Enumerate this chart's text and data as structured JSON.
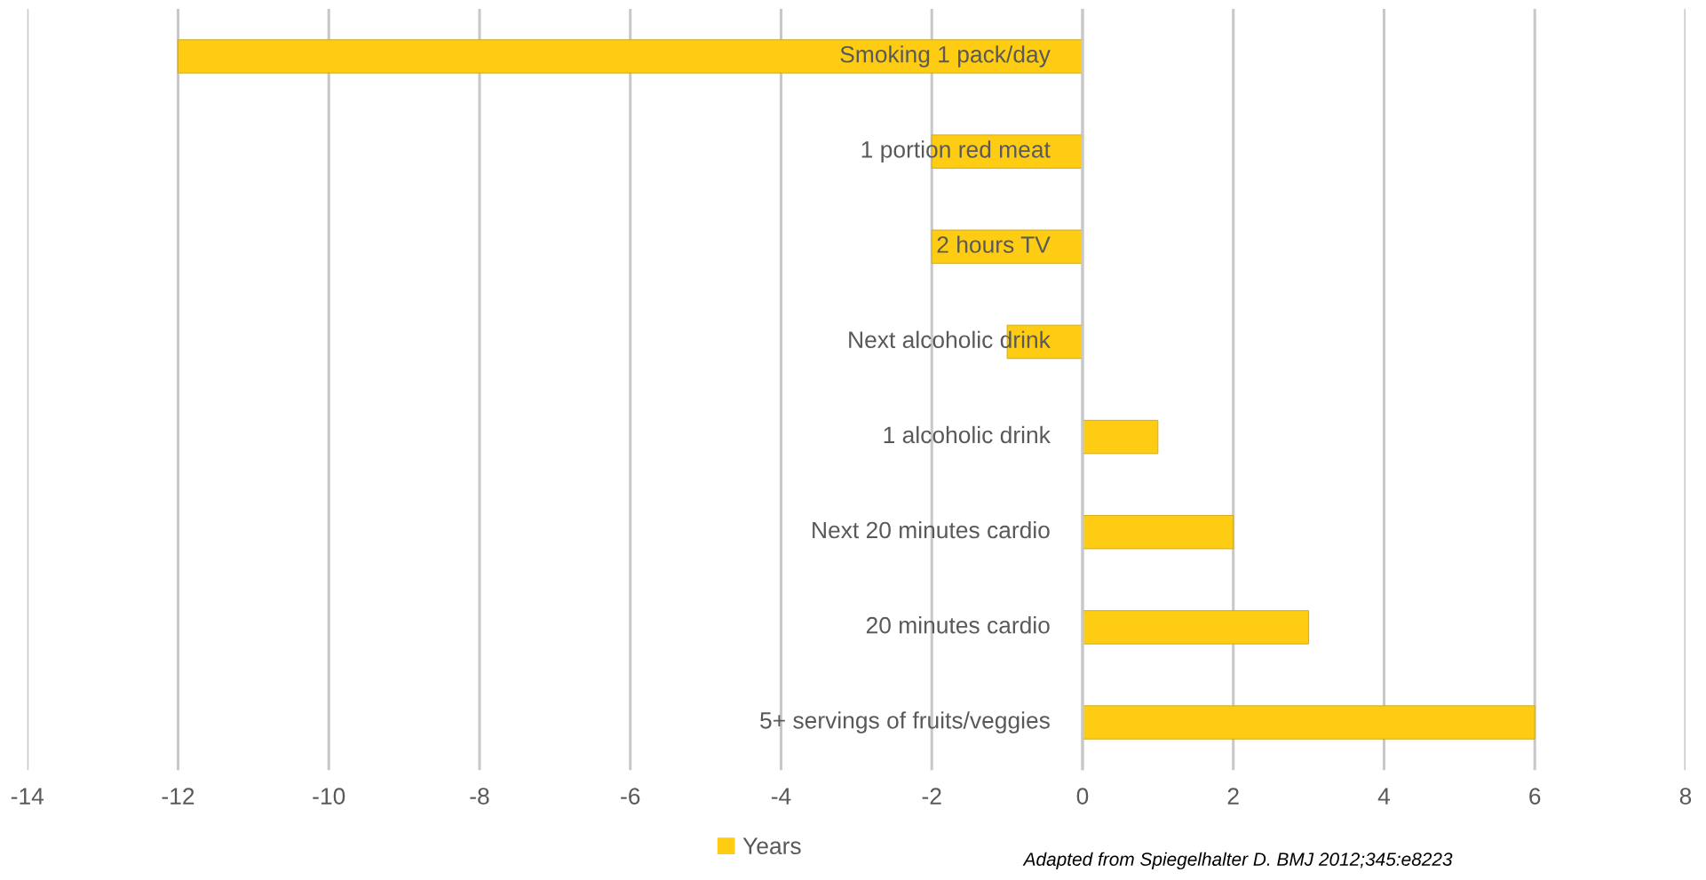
{
  "chart_data": {
    "type": "bar",
    "orientation": "horizontal",
    "categories": [
      "Smoking 1 pack/day",
      "1 portion red meat",
      "2 hours TV",
      "Next alcoholic drink",
      "1 alcoholic drink",
      "Next 20 minutes cardio",
      "20 minutes cardio",
      "5+ servings of fruits/veggies"
    ],
    "series": [
      {
        "name": "Years",
        "color": "#fecc12",
        "values": [
          -12,
          -2,
          -2,
          -1,
          1,
          2,
          3,
          6
        ]
      }
    ],
    "xlim": [
      -14,
      8
    ],
    "xticks": [
      -14,
      -12,
      -10,
      -8,
      -6,
      -4,
      -2,
      0,
      2,
      4,
      6,
      8
    ],
    "grid": "x",
    "legend": "bottom",
    "annotations": [
      "Adapted from Spiegelhalter D. BMJ 2012;345:e8223"
    ]
  }
}
